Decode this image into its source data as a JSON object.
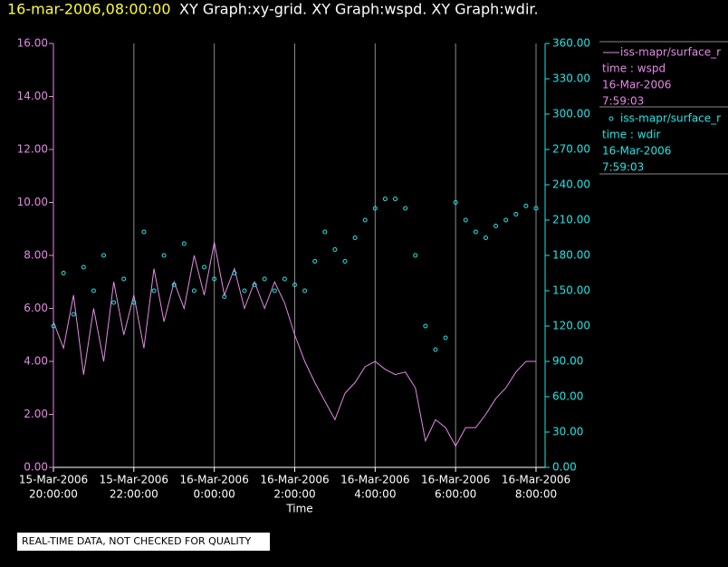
{
  "chart_data": {
    "type": "line",
    "title_time": "16-mar-2006,08:00:00",
    "title": "XY Graph:xy-grid.  XY Graph:wspd.  XY Graph:wdir.",
    "x_label": "Time",
    "footer": "REAL-TIME DATA, NOT CHECKED FOR QUALITY",
    "grid": true,
    "x": [
      "2006-03-15T20:00",
      "2006-03-15T20:15",
      "2006-03-15T20:30",
      "2006-03-15T20:45",
      "2006-03-15T21:00",
      "2006-03-15T21:15",
      "2006-03-15T21:30",
      "2006-03-15T21:45",
      "2006-03-15T22:00",
      "2006-03-15T22:15",
      "2006-03-15T22:30",
      "2006-03-15T22:45",
      "2006-03-15T23:00",
      "2006-03-15T23:15",
      "2006-03-15T23:30",
      "2006-03-15T23:45",
      "2006-03-16T00:00",
      "2006-03-16T00:15",
      "2006-03-16T00:30",
      "2006-03-16T00:45",
      "2006-03-16T01:00",
      "2006-03-16T01:15",
      "2006-03-16T01:30",
      "2006-03-16T01:45",
      "2006-03-16T02:00",
      "2006-03-16T02:15",
      "2006-03-16T02:30",
      "2006-03-16T02:45",
      "2006-03-16T03:00",
      "2006-03-16T03:15",
      "2006-03-16T03:30",
      "2006-03-16T03:45",
      "2006-03-16T04:00",
      "2006-03-16T04:15",
      "2006-03-16T04:30",
      "2006-03-16T04:45",
      "2006-03-16T05:00",
      "2006-03-16T05:15",
      "2006-03-16T05:30",
      "2006-03-16T05:45",
      "2006-03-16T06:00",
      "2006-03-16T06:15",
      "2006-03-16T06:30",
      "2006-03-16T06:45",
      "2006-03-16T07:00",
      "2006-03-16T07:15",
      "2006-03-16T07:30",
      "2006-03-16T07:45",
      "2006-03-16T08:00"
    ],
    "xlim": [
      "2006-03-15T20:00",
      "2006-03-16T08:00"
    ],
    "xticks": [
      {
        "value": "2006-03-15T20:00",
        "label": [
          "15-Mar-2006",
          "20:00:00"
        ]
      },
      {
        "value": "2006-03-15T22:00",
        "label": [
          "15-Mar-2006",
          "22:00:00"
        ]
      },
      {
        "value": "2006-03-16T00:00",
        "label": [
          "16-Mar-2006",
          "0:00:00"
        ]
      },
      {
        "value": "2006-03-16T02:00",
        "label": [
          "16-Mar-2006",
          "2:00:00"
        ]
      },
      {
        "value": "2006-03-16T04:00",
        "label": [
          "16-Mar-2006",
          "4:00:00"
        ]
      },
      {
        "value": "2006-03-16T06:00",
        "label": [
          "16-Mar-2006",
          "6:00:00"
        ]
      },
      {
        "value": "2006-03-16T08:00",
        "label": [
          "16-Mar-2006",
          "8:00:00"
        ]
      }
    ],
    "ylim": [
      0,
      16
    ],
    "yticks": [
      {
        "value": 0,
        "label": "0.00"
      },
      {
        "value": 2,
        "label": "2.00"
      },
      {
        "value": 4,
        "label": "4.00"
      },
      {
        "value": 6,
        "label": "6.00"
      },
      {
        "value": 8,
        "label": "8.00"
      },
      {
        "value": 10,
        "label": "10.00"
      },
      {
        "value": 12,
        "label": "12.00"
      },
      {
        "value": 14,
        "label": "14.00"
      },
      {
        "value": 16,
        "label": "16.00"
      }
    ],
    "y2lim": [
      0,
      360
    ],
    "y2ticks": [
      {
        "value": 0,
        "label": "0.00"
      },
      {
        "value": 30,
        "label": "30.00"
      },
      {
        "value": 60,
        "label": "60.00"
      },
      {
        "value": 90,
        "label": "90.00"
      },
      {
        "value": 120,
        "label": "120.00"
      },
      {
        "value": 150,
        "label": "150.00"
      },
      {
        "value": 180,
        "label": "180.00"
      },
      {
        "value": 210,
        "label": "210.00"
      },
      {
        "value": 240,
        "label": "240.00"
      },
      {
        "value": 270,
        "label": "270.00"
      },
      {
        "value": 300,
        "label": "300.00"
      },
      {
        "value": 330,
        "label": "330.00"
      },
      {
        "value": 360,
        "label": "360.00"
      }
    ],
    "series": [
      {
        "name": "iss-mapr/surface_r",
        "legend_lines": [
          "time : wspd",
          "16-Mar-2006",
          "7:59:03"
        ],
        "color": "#e38ae3",
        "mark": "line",
        "values": [
          5.5,
          4.5,
          6.5,
          3.5,
          6.0,
          4.0,
          7.0,
          5.0,
          6.5,
          4.5,
          7.5,
          5.5,
          7.0,
          6.0,
          8.0,
          6.5,
          8.5,
          6.5,
          7.5,
          6.0,
          7.0,
          6.0,
          7.0,
          6.2,
          5.0,
          4.0,
          3.2,
          2.5,
          1.8,
          2.8,
          3.2,
          3.8,
          4.0,
          3.7,
          3.5,
          3.6,
          3.0,
          1.0,
          1.8,
          1.5,
          0.8,
          1.5,
          1.5,
          2.0,
          2.6,
          3.0,
          3.6,
          4.0,
          4.0
        ]
      },
      {
        "name": "iss-mapr/surface_r",
        "legend_lines": [
          "time : wdir",
          "16-Mar-2006",
          "7:59:03"
        ],
        "color": "#22e5e5",
        "mark": "circle",
        "axis": "y2",
        "values": [
          120,
          165,
          130,
          170,
          150,
          180,
          140,
          160,
          140,
          200,
          150,
          180,
          155,
          190,
          150,
          170,
          160,
          145,
          165,
          150,
          155,
          160,
          150,
          160,
          155,
          150,
          175,
          200,
          185,
          175,
          195,
          210,
          220,
          228,
          228,
          220,
          180,
          120,
          100,
          110,
          225,
          210,
          200,
          195,
          205,
          210,
          215,
          222,
          220
        ]
      }
    ]
  }
}
